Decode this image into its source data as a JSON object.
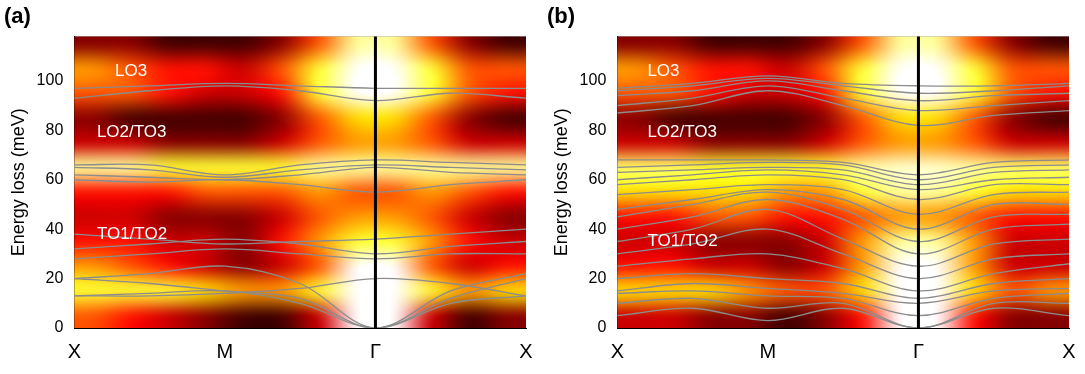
{
  "chart_data": [
    {
      "type": "line",
      "title": "(a)",
      "ylabel": "Energy loss (meV)",
      "color": "#8c8c8c",
      "grid": false,
      "xlim": [
        0,
        3
      ],
      "xticks": [
        {
          "value": 0,
          "label": "X"
        },
        {
          "value": 1,
          "label": "M"
        },
        {
          "value": 2,
          "label": "Γ"
        },
        {
          "value": 3,
          "label": "X"
        }
      ],
      "ylim": [
        0,
        118
      ],
      "yticks": [
        0,
        20,
        40,
        60,
        80,
        100
      ],
      "vlines": [
        2
      ],
      "annotations": [
        {
          "text": "LO3",
          "x": 0.27,
          "y": 104
        },
        {
          "text": "LO2/TO3",
          "x": 0.15,
          "y": 79
        },
        {
          "text": "TO1/TO2",
          "x": 0.15,
          "y": 38
        }
      ],
      "heatmap": {
        "x_edges": [
          0,
          0.25,
          0.5,
          0.75,
          1,
          1.25,
          1.5,
          1.75,
          2,
          2.25,
          2.5,
          2.75,
          3
        ],
        "y_edges": [
          0,
          10,
          20,
          30,
          40,
          50,
          60,
          70,
          80,
          90,
          100,
          110,
          120
        ],
        "range": [
          0,
          1
        ],
        "cells": [
          [
            0.5,
            0.4,
            0.3,
            0.2,
            0.1,
            0.1,
            0.3,
            1.0,
            1.0,
            0.3,
            0.1,
            0.2
          ],
          [
            0.8,
            0.8,
            0.8,
            0.7,
            0.6,
            0.6,
            0.8,
            1.0,
            1.0,
            0.8,
            0.6,
            0.7
          ],
          [
            0.6,
            0.5,
            0.4,
            0.3,
            0.2,
            0.3,
            0.5,
            1.0,
            1.0,
            0.5,
            0.3,
            0.4
          ],
          [
            0.4,
            0.4,
            0.3,
            0.3,
            0.2,
            0.4,
            0.6,
            0.8,
            0.8,
            0.6,
            0.4,
            0.3
          ],
          [
            0.3,
            0.3,
            0.2,
            0.2,
            0.2,
            0.3,
            0.5,
            0.6,
            0.6,
            0.5,
            0.3,
            0.2
          ],
          [
            0.4,
            0.4,
            0.4,
            0.5,
            0.5,
            0.5,
            0.6,
            0.5,
            0.5,
            0.6,
            0.5,
            0.4
          ],
          [
            0.9,
            0.9,
            0.8,
            0.8,
            0.8,
            0.8,
            0.9,
            0.9,
            0.9,
            0.9,
            0.9,
            0.9
          ],
          [
            0.3,
            0.3,
            0.2,
            0.2,
            0.2,
            0.3,
            0.5,
            0.6,
            0.6,
            0.5,
            0.3,
            0.3
          ],
          [
            0.2,
            0.1,
            0.1,
            0.1,
            0.1,
            0.2,
            0.5,
            0.7,
            0.7,
            0.5,
            0.2,
            0.1
          ],
          [
            0.5,
            0.5,
            0.4,
            0.3,
            0.3,
            0.4,
            0.8,
            1.0,
            1.0,
            0.8,
            0.5,
            0.4
          ],
          [
            0.6,
            0.5,
            0.4,
            0.4,
            0.3,
            0.5,
            0.8,
            1.0,
            1.0,
            0.8,
            0.5,
            0.5
          ],
          [
            0.2,
            0.2,
            0.1,
            0.1,
            0.1,
            0.2,
            0.5,
            0.9,
            0.9,
            0.5,
            0.2,
            0.1
          ]
        ]
      },
      "x": [
        0,
        0.5,
        1,
        1.5,
        2,
        2.5,
        3
      ],
      "series": [
        {
          "values": [
            13,
            14,
            15,
            10,
            0,
            10,
            13
          ]
        },
        {
          "values": [
            20,
            18,
            15,
            12,
            0,
            12,
            20
          ]
        },
        {
          "values": [
            20,
            22,
            25,
            18,
            0,
            15,
            22
          ]
        },
        {
          "values": [
            13,
            13,
            14,
            16,
            20,
            18,
            13
          ]
        },
        {
          "values": [
            28,
            30,
            32,
            30,
            28,
            30,
            30
          ]
        },
        {
          "values": [
            32,
            34,
            36,
            34,
            30,
            33,
            35
          ]
        },
        {
          "values": [
            38,
            36,
            34,
            35,
            36,
            38,
            40
          ]
        },
        {
          "values": [
            60,
            59,
            60,
            58,
            55,
            58,
            60
          ]
        },
        {
          "values": [
            62,
            61,
            60,
            62,
            65,
            63,
            62
          ]
        },
        {
          "values": [
            65,
            64,
            61,
            64,
            66,
            65,
            64
          ]
        },
        {
          "values": [
            66,
            66,
            62,
            66,
            68,
            67,
            66
          ]
        },
        {
          "values": [
            93,
            96,
            98,
            96,
            92,
            95,
            93
          ]
        },
        {
          "values": [
            97,
            98,
            99,
            98,
            97,
            97,
            97
          ]
        }
      ]
    },
    {
      "type": "line",
      "title": "(b)",
      "ylabel": "Energy loss (meV)",
      "color": "#8c8c8c",
      "grid": false,
      "xlim": [
        0,
        3
      ],
      "xticks": [
        {
          "value": 0,
          "label": "X"
        },
        {
          "value": 1,
          "label": "M"
        },
        {
          "value": 2,
          "label": "Γ"
        },
        {
          "value": 3,
          "label": "X"
        }
      ],
      "ylim": [
        0,
        118
      ],
      "yticks": [
        0,
        20,
        40,
        60,
        80,
        100
      ],
      "vlines": [
        2
      ],
      "annotations": [
        {
          "text": "LO3",
          "x": 0.2,
          "y": 104
        },
        {
          "text": "LO2/TO3",
          "x": 0.2,
          "y": 79
        },
        {
          "text": "TO1/TO2",
          "x": 0.2,
          "y": 35
        }
      ],
      "heatmap": {
        "x_edges": [
          0,
          0.25,
          0.5,
          0.75,
          1,
          1.25,
          1.5,
          1.75,
          2,
          2.25,
          2.5,
          2.75,
          3
        ],
        "y_edges": [
          0,
          10,
          20,
          30,
          40,
          50,
          60,
          70,
          80,
          90,
          100,
          110,
          120
        ],
        "range": [
          0,
          1
        ],
        "cells": [
          [
            0.3,
            0.3,
            0.2,
            0.2,
            0.1,
            0.2,
            0.4,
            1.0,
            1.0,
            0.4,
            0.2,
            0.2
          ],
          [
            0.7,
            0.7,
            0.7,
            0.6,
            0.5,
            0.5,
            0.7,
            1.0,
            1.0,
            0.7,
            0.5,
            0.6
          ],
          [
            0.4,
            0.4,
            0.3,
            0.3,
            0.2,
            0.3,
            0.6,
            1.0,
            1.0,
            0.6,
            0.3,
            0.3
          ],
          [
            0.3,
            0.3,
            0.2,
            0.2,
            0.2,
            0.3,
            0.6,
            0.9,
            0.9,
            0.6,
            0.3,
            0.3
          ],
          [
            0.4,
            0.4,
            0.5,
            0.5,
            0.4,
            0.4,
            0.5,
            0.6,
            0.6,
            0.5,
            0.4,
            0.4
          ],
          [
            0.7,
            0.7,
            0.7,
            0.7,
            0.6,
            0.6,
            0.8,
            0.9,
            0.9,
            0.8,
            0.7,
            0.7
          ],
          [
            0.85,
            0.85,
            0.8,
            0.8,
            0.8,
            0.8,
            0.9,
            0.95,
            0.95,
            0.9,
            0.85,
            0.85
          ],
          [
            0.3,
            0.3,
            0.2,
            0.2,
            0.2,
            0.3,
            0.5,
            0.6,
            0.6,
            0.5,
            0.3,
            0.3
          ],
          [
            0.2,
            0.1,
            0.1,
            0.1,
            0.1,
            0.2,
            0.5,
            0.7,
            0.7,
            0.5,
            0.2,
            0.1
          ],
          [
            0.5,
            0.5,
            0.4,
            0.3,
            0.3,
            0.4,
            0.8,
            1.0,
            1.0,
            0.8,
            0.5,
            0.4
          ],
          [
            0.6,
            0.5,
            0.4,
            0.4,
            0.3,
            0.5,
            0.8,
            1.0,
            1.0,
            0.8,
            0.5,
            0.5
          ],
          [
            0.2,
            0.2,
            0.1,
            0.1,
            0.1,
            0.2,
            0.5,
            0.9,
            0.9,
            0.5,
            0.2,
            0.1
          ]
        ]
      },
      "x": [
        0,
        0.5,
        1,
        1.5,
        2,
        2.5,
        3
      ],
      "series": [
        {
          "values": [
            5,
            8,
            3,
            8,
            0,
            8,
            5
          ]
        },
        {
          "values": [
            10,
            12,
            8,
            10,
            0,
            10,
            10
          ]
        },
        {
          "values": [
            14,
            15,
            13,
            12,
            5,
            12,
            14
          ]
        },
        {
          "values": [
            15,
            18,
            16,
            14,
            10,
            15,
            16
          ]
        },
        {
          "values": [
            20,
            22,
            20,
            18,
            12,
            18,
            20
          ]
        },
        {
          "values": [
            25,
            28,
            30,
            24,
            15,
            22,
            26
          ]
        },
        {
          "values": [
            30,
            34,
            40,
            30,
            20,
            28,
            30
          ]
        },
        {
          "values": [
            35,
            40,
            48,
            36,
            25,
            34,
            36
          ]
        },
        {
          "values": [
            40,
            45,
            52,
            44,
            30,
            40,
            42
          ]
        },
        {
          "values": [
            45,
            50,
            55,
            48,
            35,
            45,
            46
          ]
        },
        {
          "values": [
            48,
            52,
            56,
            52,
            40,
            50,
            50
          ]
        },
        {
          "values": [
            54,
            56,
            58,
            56,
            46,
            54,
            55
          ]
        },
        {
          "values": [
            58,
            60,
            62,
            60,
            52,
            58,
            58
          ]
        },
        {
          "values": [
            60,
            62,
            64,
            62,
            56,
            60,
            61
          ]
        },
        {
          "values": [
            63,
            64,
            65,
            64,
            58,
            63,
            64
          ]
        },
        {
          "values": [
            65,
            66,
            67,
            66,
            60,
            65,
            66
          ]
        },
        {
          "values": [
            68,
            68,
            68,
            67,
            62,
            67,
            68
          ]
        },
        {
          "values": [
            87,
            90,
            96,
            90,
            82,
            86,
            88
          ]
        },
        {
          "values": [
            90,
            93,
            98,
            93,
            88,
            90,
            92
          ]
        },
        {
          "values": [
            94,
            96,
            100,
            96,
            92,
            94,
            95
          ]
        },
        {
          "values": [
            96,
            98,
            101,
            98,
            95,
            96,
            98
          ]
        },
        {
          "values": [
            97,
            99,
            102,
            99,
            98,
            98,
            99
          ]
        }
      ]
    }
  ]
}
